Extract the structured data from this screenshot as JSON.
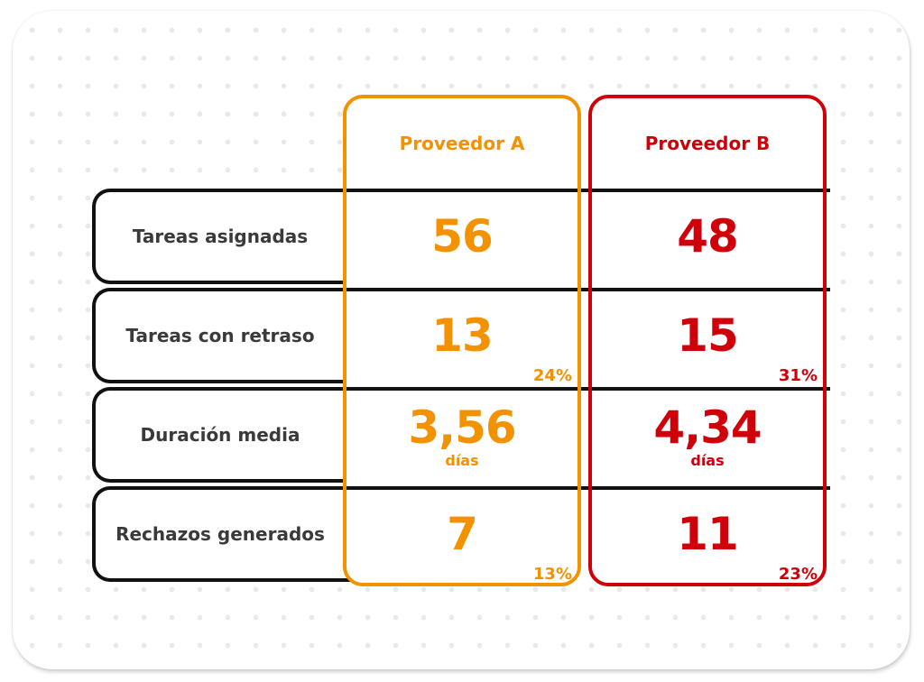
{
  "rows": [
    {
      "label": "Tareas asignadas"
    },
    {
      "label": "Tareas con retraso"
    },
    {
      "label": "Duración media"
    },
    {
      "label": "Rechazos generados"
    }
  ],
  "providers": {
    "a": {
      "name": "Proveedor A",
      "color": "#f39200",
      "assigned": "56",
      "delayed": "13",
      "delayed_pct": "24%",
      "duration": "3,56",
      "duration_unit": "días",
      "rejections": "7",
      "rejections_pct": "13%"
    },
    "b": {
      "name": "Proveedor B",
      "color": "#d0000b",
      "assigned": "48",
      "delayed": "15",
      "delayed_pct": "31%",
      "duration": "4,34",
      "duration_unit": "días",
      "rejections": "11",
      "rejections_pct": "23%"
    }
  }
}
